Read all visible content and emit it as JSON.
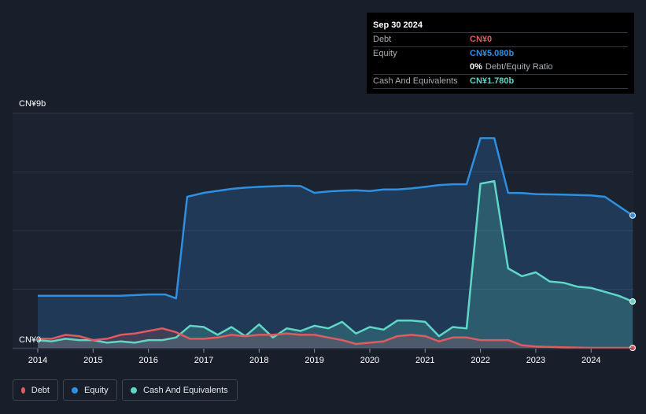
{
  "tooltip": {
    "date": "Sep 30 2024",
    "debt_label": "Debt",
    "debt_value": "CN¥0",
    "equity_label": "Equity",
    "equity_value": "CN¥5.080b",
    "ratio_value": "0%",
    "ratio_label": "Debt/Equity Ratio",
    "cash_label": "Cash And Equivalents",
    "cash_value": "CN¥1.780b"
  },
  "legend": {
    "debt": "Debt",
    "equity": "Equity",
    "cash": "Cash And Equivalents"
  },
  "colors": {
    "debt": "#e05a5f",
    "equity": "#2f8fe0",
    "cash": "#5fd6c6",
    "background": "#181e2a"
  },
  "chart_data": {
    "type": "area",
    "ylabel_top": "CN¥9b",
    "ylabel_bottom": "CN¥0",
    "ylim": [
      0,
      9
    ],
    "xlim": [
      2014.0,
      2024.75
    ],
    "x_ticks": [
      "2014",
      "2015",
      "2016",
      "2017",
      "2018",
      "2019",
      "2020",
      "2021",
      "2022",
      "2023",
      "2024"
    ],
    "grid": true,
    "units": "CN¥ billions",
    "series": [
      {
        "name": "Equity",
        "x": [
          2014.0,
          2014.5,
          2015.0,
          2015.5,
          2016.0,
          2016.3,
          2016.5,
          2016.7,
          2017.0,
          2017.5,
          2017.75,
          2018.0,
          2018.5,
          2018.75,
          2019.0,
          2019.25,
          2019.5,
          2019.75,
          2020.0,
          2020.25,
          2020.5,
          2020.75,
          2021.0,
          2021.25,
          2021.5,
          2021.75,
          2022.0,
          2022.25,
          2022.5,
          2022.75,
          2023.0,
          2023.5,
          2024.0,
          2024.25,
          2024.75
        ],
        "values": [
          2.0,
          2.0,
          2.0,
          2.0,
          2.05,
          2.05,
          1.9,
          5.8,
          5.95,
          6.1,
          6.15,
          6.18,
          6.22,
          6.21,
          5.95,
          6.0,
          6.03,
          6.05,
          6.02,
          6.08,
          6.08,
          6.12,
          6.18,
          6.25,
          6.28,
          6.28,
          8.05,
          8.05,
          5.95,
          5.94,
          5.9,
          5.88,
          5.85,
          5.8,
          5.08
        ]
      },
      {
        "name": "Cash And Equivalents",
        "x": [
          2014.0,
          2014.25,
          2014.5,
          2014.75,
          2015.0,
          2015.25,
          2015.5,
          2015.75,
          2016.0,
          2016.25,
          2016.5,
          2016.75,
          2017.0,
          2017.25,
          2017.5,
          2017.75,
          2018.0,
          2018.25,
          2018.5,
          2018.75,
          2019.0,
          2019.25,
          2019.5,
          2019.75,
          2020.0,
          2020.25,
          2020.5,
          2020.75,
          2021.0,
          2021.25,
          2021.5,
          2021.75,
          2022.0,
          2022.25,
          2022.5,
          2022.75,
          2023.0,
          2023.25,
          2023.5,
          2023.75,
          2024.0,
          2024.25,
          2024.5,
          2024.75
        ],
        "values": [
          0.3,
          0.25,
          0.35,
          0.3,
          0.3,
          0.2,
          0.25,
          0.2,
          0.3,
          0.3,
          0.4,
          0.85,
          0.8,
          0.5,
          0.8,
          0.45,
          0.9,
          0.4,
          0.75,
          0.65,
          0.85,
          0.75,
          1.0,
          0.55,
          0.8,
          0.7,
          1.05,
          1.05,
          1.0,
          0.45,
          0.8,
          0.75,
          6.3,
          6.4,
          3.05,
          2.75,
          2.9,
          2.55,
          2.5,
          2.35,
          2.3,
          2.15,
          2.0,
          1.78
        ]
      },
      {
        "name": "Debt",
        "x": [
          2014.0,
          2014.25,
          2014.5,
          2014.75,
          2015.0,
          2015.25,
          2015.5,
          2015.75,
          2016.0,
          2016.25,
          2016.5,
          2016.75,
          2017.0,
          2017.25,
          2017.5,
          2017.75,
          2018.0,
          2018.25,
          2018.5,
          2018.75,
          2019.0,
          2019.25,
          2019.5,
          2019.75,
          2020.0,
          2020.25,
          2020.5,
          2020.75,
          2021.0,
          2021.25,
          2021.5,
          2021.75,
          2022.0,
          2022.25,
          2022.5,
          2022.75,
          2023.0,
          2023.5,
          2024.0,
          2024.75
        ],
        "values": [
          0.35,
          0.35,
          0.5,
          0.45,
          0.3,
          0.35,
          0.5,
          0.55,
          0.65,
          0.75,
          0.6,
          0.35,
          0.35,
          0.4,
          0.5,
          0.45,
          0.5,
          0.5,
          0.55,
          0.5,
          0.5,
          0.4,
          0.3,
          0.15,
          0.2,
          0.25,
          0.45,
          0.5,
          0.45,
          0.25,
          0.4,
          0.4,
          0.3,
          0.3,
          0.3,
          0.1,
          0.05,
          0.02,
          0.0,
          0.0
        ]
      }
    ]
  }
}
